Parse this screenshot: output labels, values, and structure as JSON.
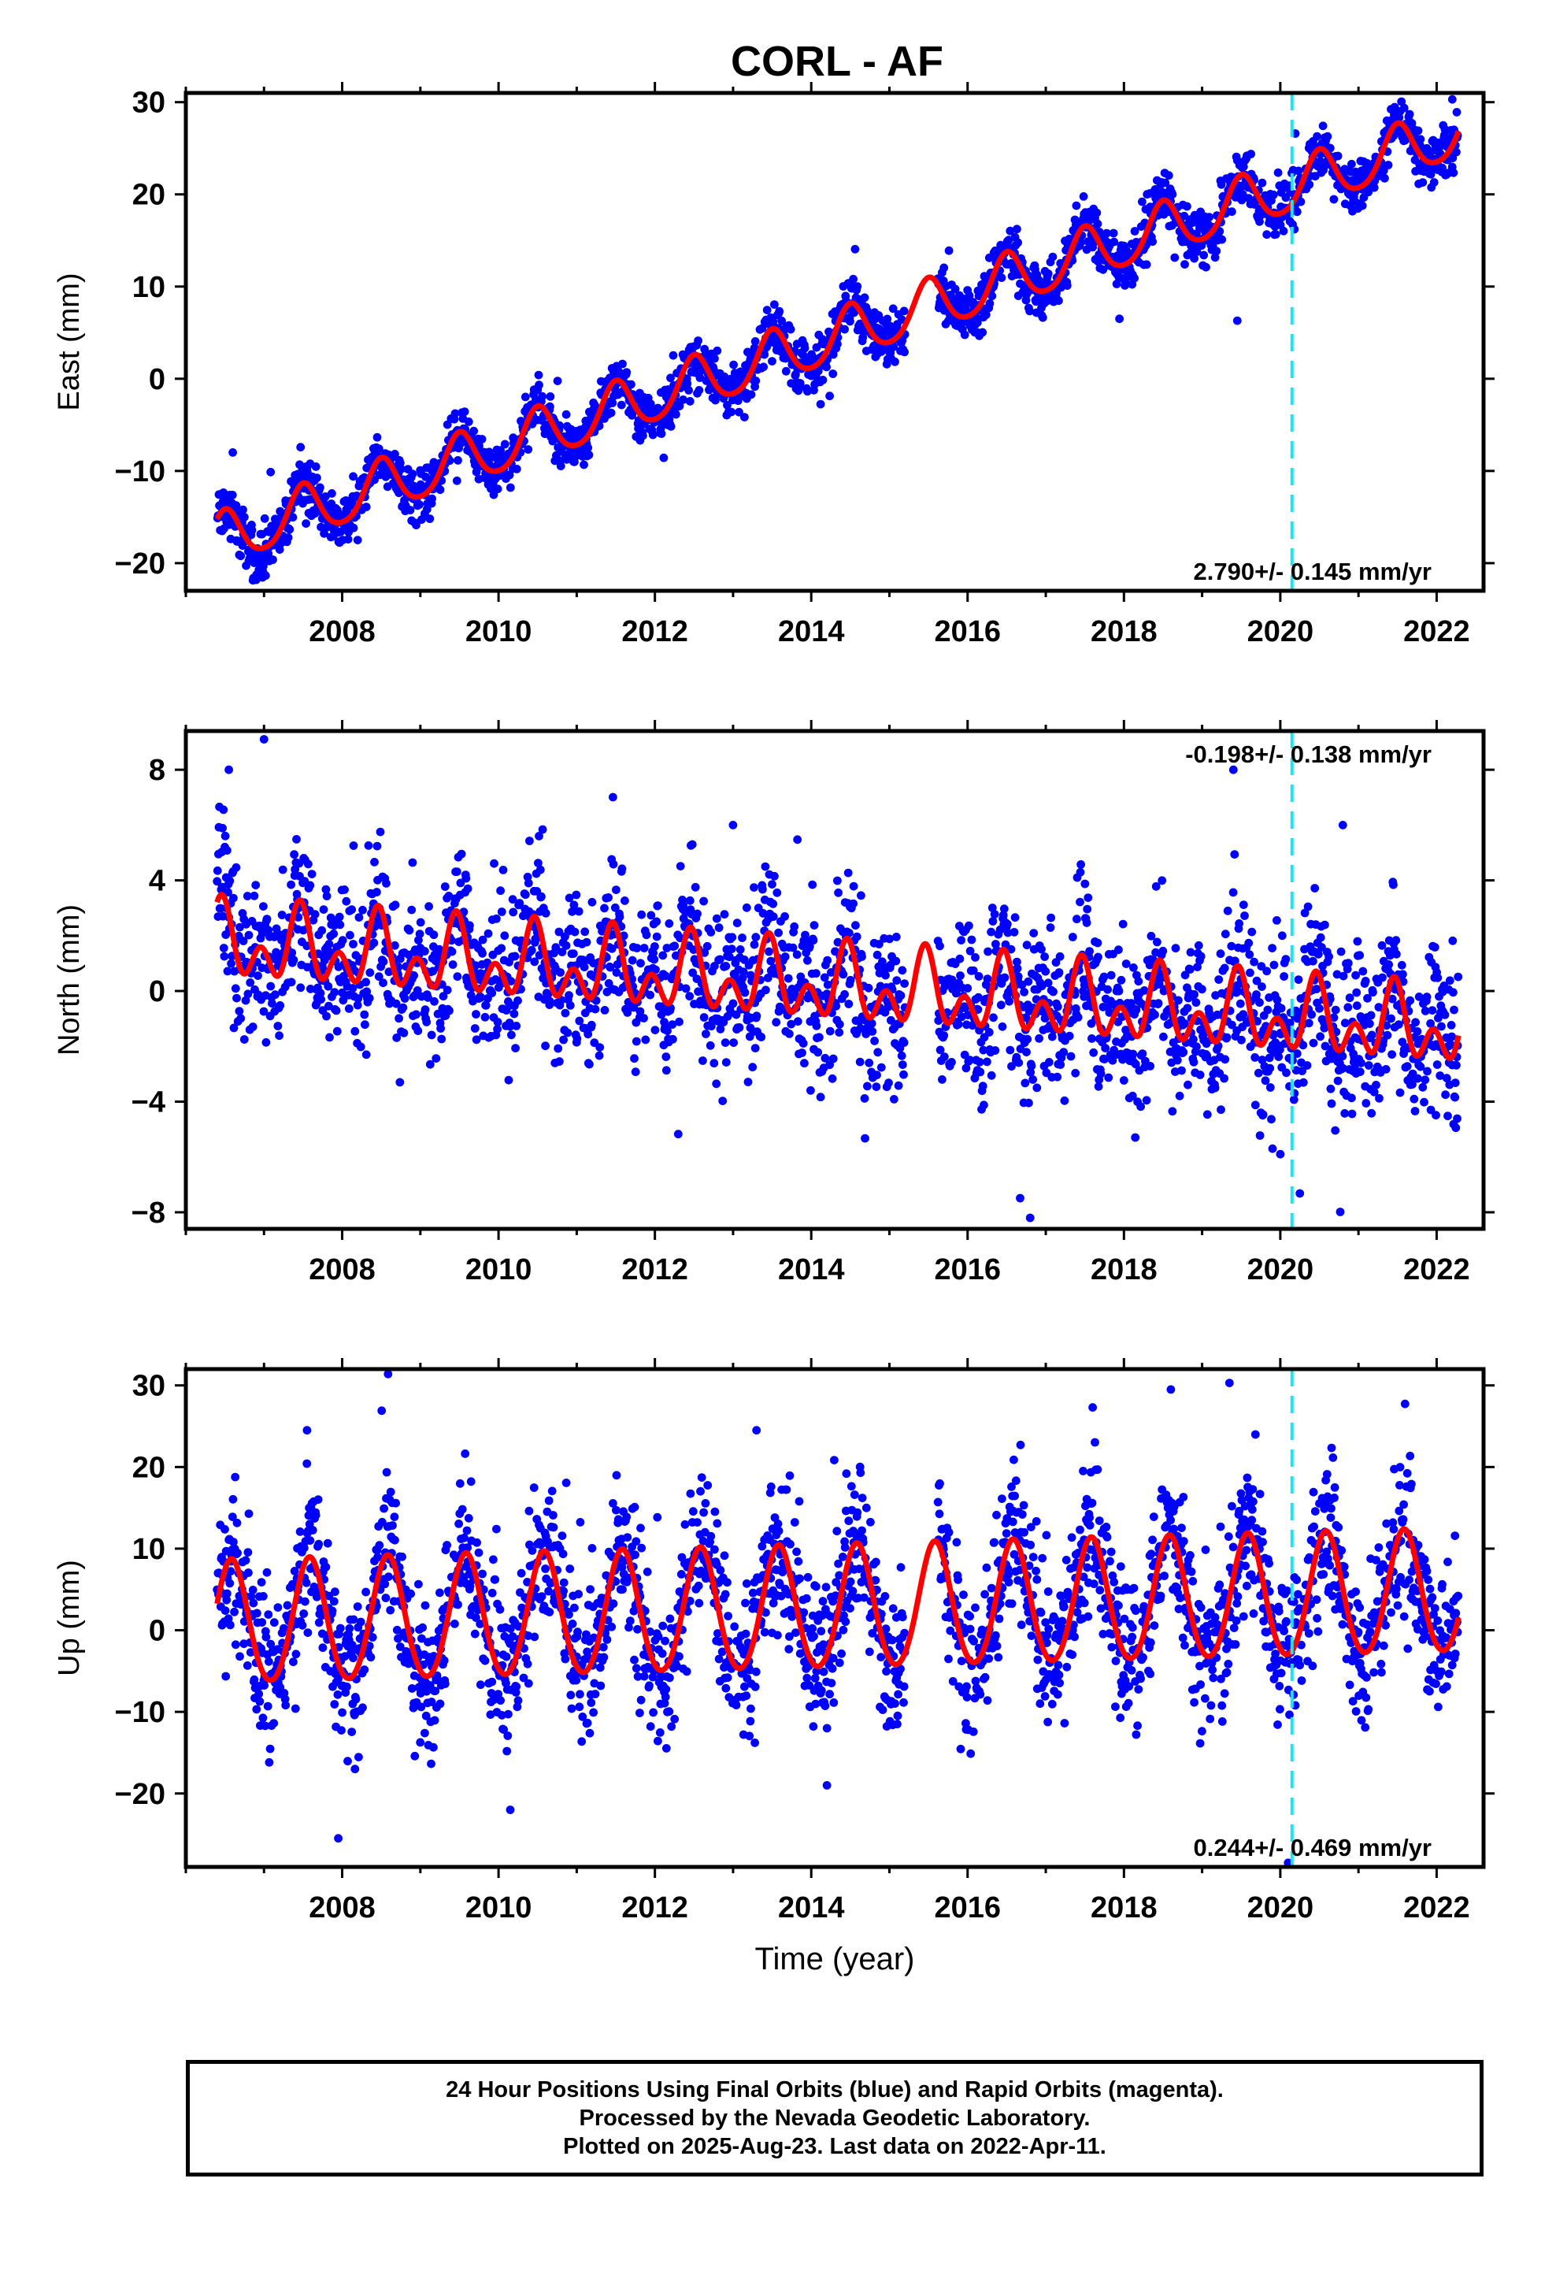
{
  "chart_data": [
    {
      "type": "scatter",
      "title": "CORL - AF",
      "ylabel": "East (mm)",
      "xlabel": "",
      "xlim": [
        2006.0,
        2022.6
      ],
      "ylim": [
        -23.0,
        31.0
      ],
      "xticks": [
        2008,
        2010,
        2012,
        2014,
        2016,
        2018,
        2020,
        2022
      ],
      "yticks": [
        -20,
        -10,
        0,
        10,
        20,
        30
      ],
      "rate_label": "2.790+/- 0.145 mm/yr",
      "rate_position": "bottom-right",
      "dashed_line_x": 2020.15,
      "data_span": [
        2006.4,
        2022.28
      ],
      "data_gap": [
        2015.2,
        2015.62
      ],
      "model": {
        "offset": -17.6,
        "slope": 2.79,
        "annual_amp": 2.8,
        "semiannual_amp": 0.4,
        "annual_peak_month": 6.5
      },
      "scatter_sd": 1.4,
      "outliers": [
        [
          2006.6,
          -8.0
        ],
        [
          2019.45,
          6.3
        ],
        [
          2022.2,
          30.3
        ],
        [
          2006.9,
          -21.8
        ]
      ],
      "series": [
        {
          "name": "Final Orbits",
          "color": "#0000ff"
        },
        {
          "name": "Model",
          "color": "#ff0000"
        }
      ],
      "dashed_line_color": "#1fe3f0"
    },
    {
      "type": "scatter",
      "title": "",
      "ylabel": "North (mm)",
      "xlabel": "",
      "xlim": [
        2006.0,
        2022.6
      ],
      "ylim": [
        -8.6,
        9.4
      ],
      "xticks": [
        2008,
        2010,
        2012,
        2014,
        2016,
        2018,
        2020,
        2022
      ],
      "yticks": [
        -8,
        -4,
        0,
        4,
        8
      ],
      "rate_label": "-0.198+/- 0.138 mm/yr",
      "rate_position": "top-right",
      "dashed_line_x": 2020.15,
      "data_span": [
        2006.4,
        2022.28
      ],
      "data_gap": [
        2015.2,
        2015.62
      ],
      "model": {
        "offset": 1.7,
        "slope": -0.198,
        "annual_amp": 0.9,
        "semiannual_amp": 0.9,
        "annual_peak_month": 6.0
      },
      "scatter_sd": 1.4,
      "outliers": [
        [
          2007.0,
          9.1
        ],
        [
          2006.55,
          8.0
        ],
        [
          2019.4,
          8.0
        ],
        [
          2013.0,
          6.0
        ],
        [
          2020.8,
          6.0
        ],
        [
          2016.8,
          -8.2
        ],
        [
          2020.0,
          -5.9
        ],
        [
          2019.9,
          -5.7
        ]
      ],
      "series": [
        {
          "name": "Final Orbits",
          "color": "#0000ff"
        },
        {
          "name": "Model",
          "color": "#ff0000"
        }
      ],
      "dashed_line_color": "#1fe3f0"
    },
    {
      "type": "scatter",
      "title": "",
      "ylabel": "Up (mm)",
      "xlabel": "Time (year)",
      "xlim": [
        2006.0,
        2022.6
      ],
      "ylim": [
        -29.0,
        32.0
      ],
      "xticks": [
        2008,
        2010,
        2012,
        2014,
        2016,
        2018,
        2020,
        2022
      ],
      "yticks": [
        -20,
        -10,
        0,
        10,
        20,
        30
      ],
      "rate_label": "0.244+/- 0.469 mm/yr",
      "rate_position": "bottom-right",
      "dashed_line_x": 2020.15,
      "data_span": [
        2006.4,
        2022.28
      ],
      "data_gap": [
        2015.2,
        2015.62
      ],
      "model": {
        "offset": 0.6,
        "slope": 0.244,
        "annual_amp": 7.5,
        "semiannual_amp": 0.6,
        "annual_peak_month": 7.5
      },
      "scatter_sd": 4.4,
      "outliers": [
        [
          2007.95,
          -25.5
        ],
        [
          2010.15,
          -22.0
        ],
        [
          2018.6,
          29.5
        ],
        [
          2019.35,
          30.3
        ],
        [
          2017.6,
          27.3
        ],
        [
          2013.3,
          24.5
        ],
        [
          2007.55,
          24.5
        ],
        [
          2020.1,
          -28.5
        ],
        [
          2014.2,
          -19.0
        ]
      ],
      "series": [
        {
          "name": "Final Orbits",
          "color": "#0000ff"
        },
        {
          "name": "Model",
          "color": "#ff0000"
        }
      ],
      "dashed_line_color": "#1fe3f0"
    }
  ],
  "caption": {
    "line1": "24 Hour Positions Using Final Orbits (blue) and Rapid Orbits (magenta).",
    "line2": "Processed by the Nevada Geodetic Laboratory.",
    "line3": "Plotted on 2025-Aug-23. Last data on 2022-Apr-11."
  }
}
